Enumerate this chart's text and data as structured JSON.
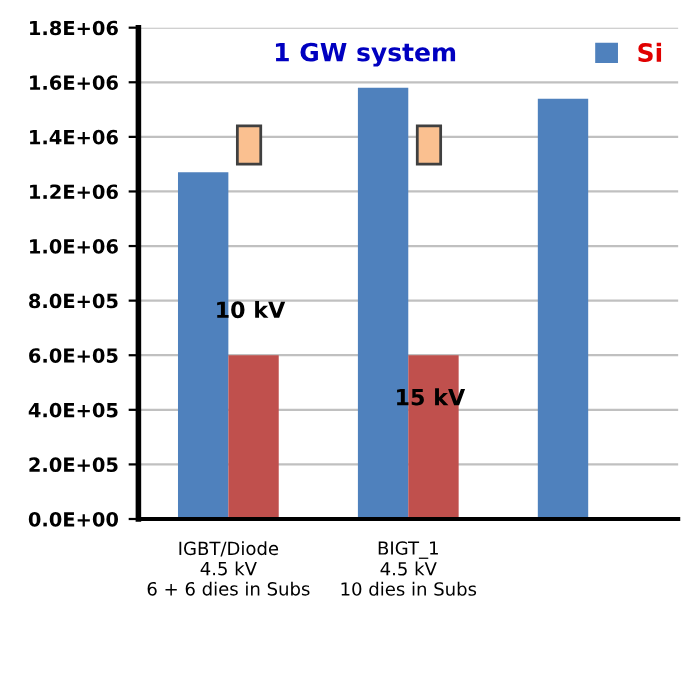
{
  "chart_data": {
    "type": "bar",
    "title": "1 GW system",
    "categories": [
      "IGBT/Diode\n4.5 kV\n6 + 6 dies in Subs",
      "BIGT_1\n4.5 kV\n10 dies in Subs",
      null
    ],
    "series": [
      {
        "name": "Si",
        "color": "#4f81bd",
        "values": [
          1270000,
          1580000,
          1540000
        ]
      },
      {
        "color": "#c0504d",
        "values": [
          600000,
          600000,
          null
        ]
      }
    ],
    "ylim": [
      0,
      1800000
    ],
    "yticks": [
      {
        "value": 0,
        "label": "0.0E+00"
      },
      {
        "value": 200000,
        "label": "2.0E+05"
      },
      {
        "value": 400000,
        "label": "4.0E+05"
      },
      {
        "value": 600000,
        "label": "6.0E+05"
      },
      {
        "value": 800000,
        "label": "8.0E+05"
      },
      {
        "value": 1000000,
        "label": "1.0E+06"
      },
      {
        "value": 1200000,
        "label": "1.2E+06"
      },
      {
        "value": 1400000,
        "label": "1.4E+06"
      },
      {
        "value": 1600000,
        "label": "1.6E+06"
      },
      {
        "value": 1800000,
        "label": "1.8E+06"
      }
    ],
    "annotations": [
      {
        "text": "10 kV",
        "x": "IGBT/Diode\n4.5 kV\n6 + 6 dies in Subs",
        "y": 720000
      },
      {
        "text": "15 kV",
        "x": "BIGT_1\n4.5 kV\n10 dies in Subs",
        "y": 400000
      }
    ],
    "grid": "y",
    "legend": "top right"
  }
}
